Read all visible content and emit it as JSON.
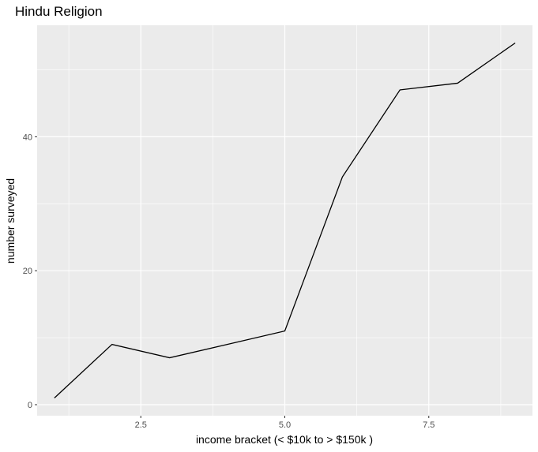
{
  "chart_data": {
    "type": "line",
    "title": "Hindu Religion",
    "xlabel": "income bracket (< $10k to > $150k )",
    "ylabel": "number surveyed",
    "x": [
      1,
      2,
      3,
      4,
      5,
      6,
      7,
      8,
      9
    ],
    "y": [
      1,
      9,
      7,
      9,
      11,
      34,
      47,
      48,
      54
    ],
    "xlim": [
      0.7,
      9.3
    ],
    "ylim": [
      -1.65,
      56.65
    ],
    "xticks": [
      2.5,
      5.0,
      7.5
    ],
    "xtick_labels": [
      "2.5",
      "5.0",
      "7.5"
    ],
    "yticks": [
      0,
      20,
      40
    ],
    "ytick_labels": [
      "0",
      "20",
      "40"
    ],
    "grid": true,
    "colors": {
      "panel": "#ebebeb",
      "grid": "#ffffff",
      "line": "#000000",
      "tick_text": "#4d4d4d"
    }
  }
}
